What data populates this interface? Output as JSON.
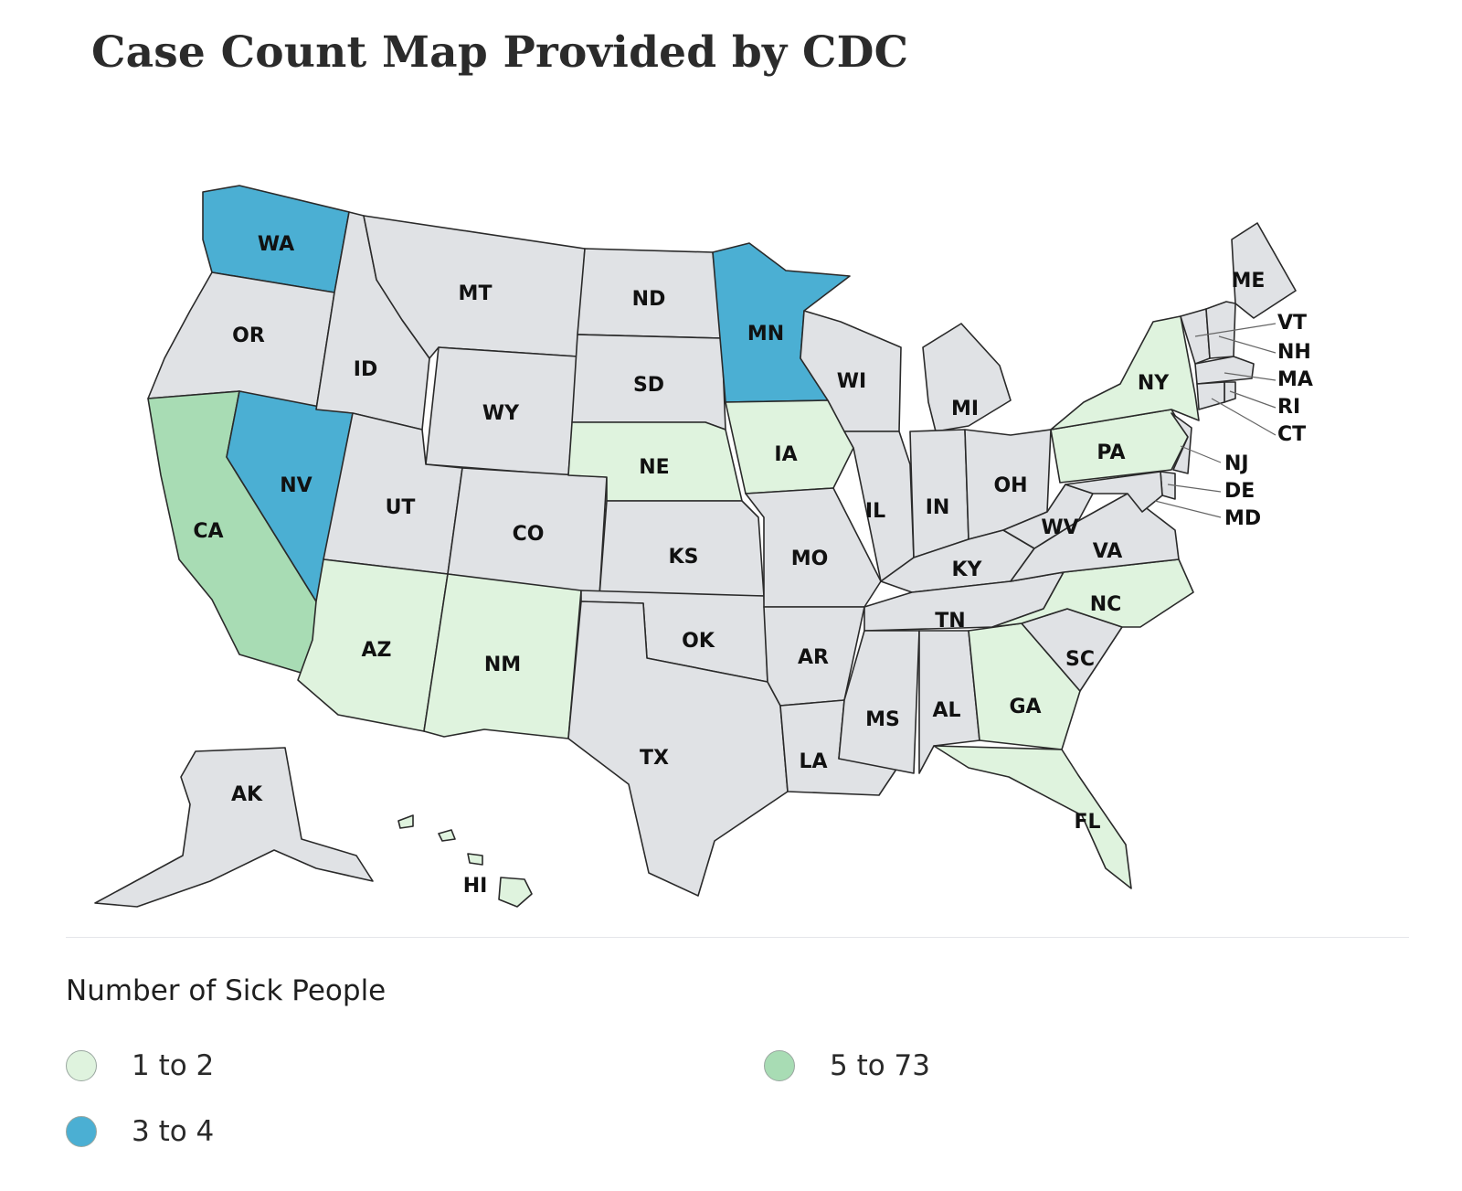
{
  "title": "Case Count Map Provided by CDC",
  "legend": {
    "title": "Number of Sick People",
    "items": [
      {
        "key": "low",
        "label": "1 to 2",
        "color": "#dff3de"
      },
      {
        "key": "high",
        "label": "5 to 73",
        "color": "#a8dcb4"
      },
      {
        "key": "mid",
        "label": "3 to 4",
        "color": "#4bafd3"
      }
    ],
    "no_data_color": "#e0e2e5"
  },
  "map_data": {
    "type": "choropleth",
    "states": [
      {
        "abbr": "WA",
        "category": "mid"
      },
      {
        "abbr": "OR",
        "category": null
      },
      {
        "abbr": "CA",
        "category": "high"
      },
      {
        "abbr": "NV",
        "category": "mid"
      },
      {
        "abbr": "ID",
        "category": null
      },
      {
        "abbr": "MT",
        "category": null
      },
      {
        "abbr": "WY",
        "category": null
      },
      {
        "abbr": "UT",
        "category": null
      },
      {
        "abbr": "AZ",
        "category": "low"
      },
      {
        "abbr": "CO",
        "category": null
      },
      {
        "abbr": "NM",
        "category": "low"
      },
      {
        "abbr": "ND",
        "category": null
      },
      {
        "abbr": "SD",
        "category": null
      },
      {
        "abbr": "NE",
        "category": "low"
      },
      {
        "abbr": "KS",
        "category": null
      },
      {
        "abbr": "OK",
        "category": null
      },
      {
        "abbr": "TX",
        "category": null
      },
      {
        "abbr": "MN",
        "category": "mid"
      },
      {
        "abbr": "IA",
        "category": "low"
      },
      {
        "abbr": "MO",
        "category": null
      },
      {
        "abbr": "AR",
        "category": null
      },
      {
        "abbr": "LA",
        "category": null
      },
      {
        "abbr": "WI",
        "category": null
      },
      {
        "abbr": "IL",
        "category": null
      },
      {
        "abbr": "MI",
        "category": null
      },
      {
        "abbr": "IN",
        "category": null
      },
      {
        "abbr": "OH",
        "category": null
      },
      {
        "abbr": "KY",
        "category": null
      },
      {
        "abbr": "TN",
        "category": null
      },
      {
        "abbr": "MS",
        "category": null
      },
      {
        "abbr": "AL",
        "category": null
      },
      {
        "abbr": "GA",
        "category": "low"
      },
      {
        "abbr": "FL",
        "category": "low"
      },
      {
        "abbr": "SC",
        "category": null
      },
      {
        "abbr": "NC",
        "category": "low"
      },
      {
        "abbr": "VA",
        "category": null
      },
      {
        "abbr": "WV",
        "category": null
      },
      {
        "abbr": "PA",
        "category": "low"
      },
      {
        "abbr": "NY",
        "category": "low"
      },
      {
        "abbr": "ME",
        "category": null
      },
      {
        "abbr": "VT",
        "category": null
      },
      {
        "abbr": "NH",
        "category": null
      },
      {
        "abbr": "MA",
        "category": null
      },
      {
        "abbr": "RI",
        "category": null
      },
      {
        "abbr": "CT",
        "category": null
      },
      {
        "abbr": "NJ",
        "category": null
      },
      {
        "abbr": "DE",
        "category": null
      },
      {
        "abbr": "MD",
        "category": null
      },
      {
        "abbr": "AK",
        "category": null
      },
      {
        "abbr": "HI",
        "category": "low"
      }
    ]
  }
}
